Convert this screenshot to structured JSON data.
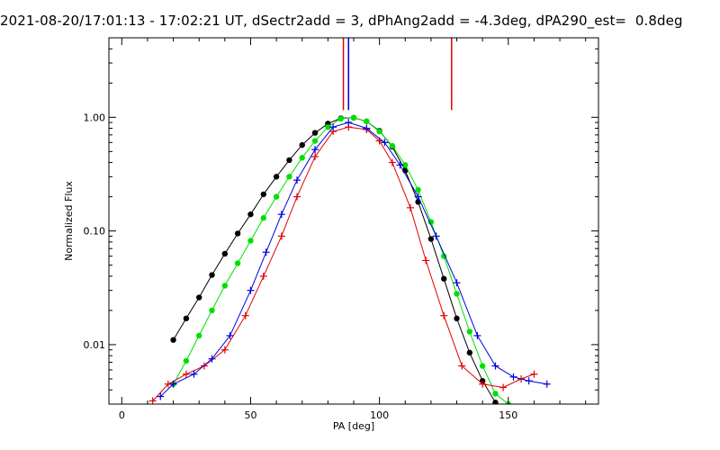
{
  "chart_data": {
    "type": "line",
    "title": "2021-08-20/17:01:13 - 17:02:21 UT, dSectr2add = 3, dPhAng2add = -4.3deg, dPA290_est=  0.8deg",
    "xlabel": "PA [deg]",
    "ylabel": "Normalized Flux",
    "xlim": [
      -5,
      185
    ],
    "ylim": [
      0.003,
      5
    ],
    "yscale": "log",
    "grid": false,
    "x_ticks": [
      "0",
      "50",
      "100",
      "150"
    ],
    "x_tick_values": [
      0,
      50,
      100,
      150
    ],
    "y_ticks": [
      "0.01",
      "0.10",
      "1.00"
    ],
    "y_tick_values": [
      0.01,
      0.1,
      1.0
    ],
    "series": [
      {
        "color": "#000000",
        "marker": "filled-circle",
        "x": [
          20,
          25,
          30,
          35,
          40,
          45,
          50,
          55,
          60,
          65,
          70,
          75,
          80,
          85,
          90,
          95,
          100,
          105,
          110,
          115,
          120,
          125,
          130,
          135,
          140,
          145
        ],
        "y": [
          0.011,
          0.017,
          0.026,
          0.041,
          0.063,
          0.095,
          0.14,
          0.21,
          0.3,
          0.42,
          0.57,
          0.73,
          0.88,
          0.98,
          0.99,
          0.92,
          0.76,
          0.55,
          0.34,
          0.18,
          0.085,
          0.038,
          0.017,
          0.0085,
          0.0048,
          0.0031
        ]
      },
      {
        "color": "#00e000",
        "marker": "filled-circle",
        "x": [
          20,
          25,
          30,
          35,
          40,
          45,
          50,
          55,
          60,
          65,
          70,
          75,
          80,
          85,
          90,
          95,
          100,
          105,
          110,
          115,
          120,
          125,
          130,
          135,
          140,
          145,
          150
        ],
        "y": [
          0.0045,
          0.0072,
          0.012,
          0.02,
          0.033,
          0.052,
          0.082,
          0.13,
          0.2,
          0.3,
          0.44,
          0.62,
          0.82,
          0.97,
          0.99,
          0.92,
          0.75,
          0.56,
          0.38,
          0.23,
          0.12,
          0.06,
          0.028,
          0.013,
          0.0065,
          0.0037,
          0.003
        ]
      },
      {
        "color": "#e00000",
        "marker": "plus",
        "x": [
          12,
          18,
          25,
          32,
          40,
          48,
          55,
          62,
          68,
          75,
          82,
          88,
          95,
          100,
          105,
          112,
          118,
          125,
          132,
          140,
          148,
          155,
          160
        ],
        "y": [
          0.0032,
          0.0045,
          0.0055,
          0.0065,
          0.009,
          0.018,
          0.04,
          0.09,
          0.2,
          0.45,
          0.75,
          0.82,
          0.78,
          0.62,
          0.4,
          0.16,
          0.055,
          0.018,
          0.0065,
          0.0045,
          0.0042,
          0.005,
          0.0055
        ]
      },
      {
        "color": "#0000e0",
        "marker": "plus",
        "x": [
          15,
          20,
          28,
          35,
          42,
          50,
          56,
          62,
          68,
          75,
          82,
          88,
          95,
          102,
          108,
          115,
          122,
          130,
          138,
          145,
          152,
          158,
          165
        ],
        "y": [
          0.0035,
          0.0045,
          0.0055,
          0.0075,
          0.012,
          0.03,
          0.065,
          0.14,
          0.28,
          0.52,
          0.82,
          0.9,
          0.8,
          0.6,
          0.38,
          0.2,
          0.09,
          0.035,
          0.012,
          0.0065,
          0.0052,
          0.0048,
          0.0045
        ]
      }
    ],
    "vertical_markers": [
      {
        "color": "#e00000",
        "x": 86
      },
      {
        "color": "#0000e0",
        "x": 88
      },
      {
        "color": "#e00000",
        "x": 128
      }
    ]
  }
}
